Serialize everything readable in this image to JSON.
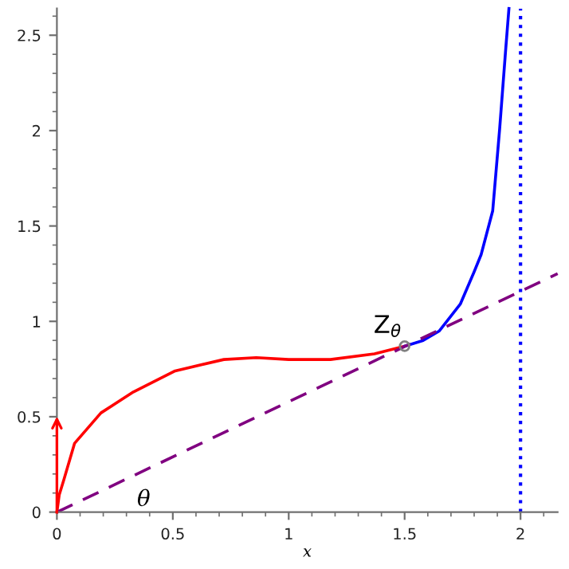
{
  "chart_data": {
    "type": "line",
    "xlabel": "x",
    "xlim": [
      0,
      2.16
    ],
    "ylim": [
      0,
      2.64
    ],
    "xticks": [
      0,
      0.5,
      1,
      1.5,
      2
    ],
    "yticks": [
      0,
      0.5,
      1,
      1.5,
      2,
      2.5
    ],
    "grid": false,
    "legend": false,
    "series": [
      {
        "color": "#ff0000",
        "x": [
          0,
          0.01,
          0.03,
          0.076,
          0.19,
          0.33,
          0.51,
          0.72,
          0.86,
          1.0,
          1.18,
          1.37,
          1.5
        ],
        "values": [
          0,
          0.09,
          0.17,
          0.36,
          0.52,
          0.63,
          0.74,
          0.8,
          0.81,
          0.8,
          0.8,
          0.83,
          0.87
        ],
        "line_style": "solid"
      },
      {
        "color": "#0000ff",
        "x": [
          1.5,
          1.58,
          1.65,
          1.74,
          1.8,
          1.83,
          1.88,
          1.91,
          1.935,
          1.95
        ],
        "values": [
          0.87,
          0.9,
          0.95,
          1.09,
          1.26,
          1.35,
          1.58,
          2.01,
          2.41,
          2.64
        ],
        "line_style": "solid"
      },
      {
        "color": "#800080",
        "x": [
          0,
          2.16
        ],
        "values": [
          0,
          1.25
        ],
        "line_style": "dashed"
      },
      {
        "type": "scatter",
        "color": "#808080",
        "x": [
          1.5
        ],
        "values": [
          0.87
        ],
        "marker": "circle"
      }
    ],
    "ref_lines": [
      {
        "axis": "x",
        "value": 2,
        "color": "#0000ff",
        "line_style": "dotted"
      }
    ],
    "annotations": [
      {
        "text": "Z$_{θ}$",
        "x": 1.5,
        "y": 0.87
      },
      "θ"
    ]
  }
}
